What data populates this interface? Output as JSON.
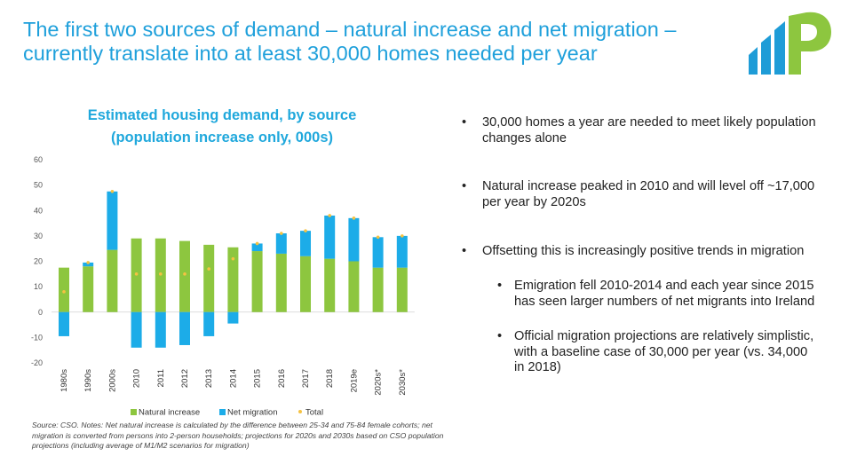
{
  "header": {
    "title_line1": "The first two sources of demand – natural increase and net migration –",
    "title_line2": "currently translate into at least 30,000 homes needed per year"
  },
  "colors": {
    "title": "#1fa0db",
    "natural_increase": "#8dc63f",
    "net_migration": "#1cace8",
    "total_marker": "#f5c242",
    "logo_blue": "#1e9cd7",
    "logo_green": "#8dc63f"
  },
  "chart_data": {
    "type": "bar",
    "stacked": true,
    "title_line1": "Estimated housing demand, by source",
    "title_line2": "(population increase only, 000s)",
    "xlabel": "",
    "ylabel": "",
    "ylim": [
      -20,
      60
    ],
    "yticks": [
      -20,
      -10,
      0,
      10,
      20,
      30,
      40,
      50,
      60
    ],
    "categories": [
      "1980s",
      "1990s",
      "2000s",
      "2010",
      "2011",
      "2012",
      "2013",
      "2014",
      "2015",
      "2016",
      "2017",
      "2018",
      "2019e",
      "2020s*",
      "2030s*"
    ],
    "series": [
      {
        "name": "Natural increase",
        "values": [
          17.5,
          18,
          24.5,
          29,
          29,
          28,
          26.5,
          25.5,
          24,
          23,
          22,
          21,
          20,
          17.5,
          17.5
        ]
      },
      {
        "name": "Net migration",
        "values": [
          -9.5,
          1.5,
          23,
          -14,
          -14,
          -13,
          -9.5,
          -4.5,
          3,
          8,
          10,
          17,
          17,
          12,
          12.5
        ]
      },
      {
        "name": "Total",
        "marker": "dot",
        "values": [
          8,
          19.5,
          47.5,
          15,
          15,
          15,
          17,
          21,
          27,
          31,
          32,
          38,
          37,
          29.5,
          30
        ]
      }
    ],
    "legend_position": "bottom",
    "grid": false
  },
  "source_note": "Source: CSO. Notes: Net natural increase is calculated by the difference between 25-34 and 75-84 female cohorts; net migration is converted from persons into 2-person households; projections for 2020s and 2030s based on CSO population projections (including average of M1/M2 scenarios for migration)",
  "bullets": {
    "symbol": "•",
    "b1": "30,000 homes a year are needed to meet likely population changes alone",
    "b2": "Natural increase peaked in 2010 and will level off ~17,000 per year by 2020s",
    "b3": "Offsetting this is increasingly positive trends in migration",
    "b3_sub1": "Emigration fell 2010-2014 and each year since 2015 has seen larger numbers of net migrants into Ireland",
    "b3_sub2": "Official migration projections are relatively simplistic, with a baseline case of 30,000 per year (vs. 34,000 in 2018)"
  },
  "logo": {
    "icon": "bar-chart-p-logo"
  }
}
